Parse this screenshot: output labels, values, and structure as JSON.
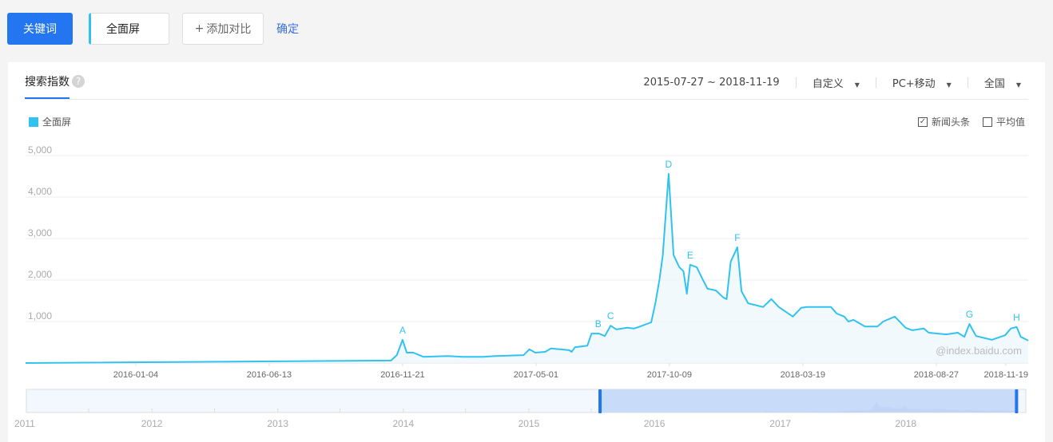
{
  "toolbar": {
    "keyword_button": "关键词",
    "keyword_value": "全面屏",
    "add_compare": "添加对比",
    "plus_icon": "+",
    "confirm": "确定"
  },
  "panel": {
    "tab": "搜索指数",
    "help_icon": "?",
    "date_range": "2015-07-27 ~ 2018-11-19",
    "period": "自定义",
    "device": "PC+移动",
    "region": "全国",
    "legend": "全面屏",
    "news_checkbox": {
      "label": "新闻头条",
      "checked": true
    },
    "avg_checkbox": {
      "label": "平均值",
      "checked": false
    },
    "watermark": "@index.baidu.com"
  },
  "colors": {
    "series": "#32c2ef",
    "accent": "#2375f0",
    "fill": "#eef8fd"
  },
  "chart_data": {
    "type": "area",
    "ylim": [
      0,
      5000
    ],
    "yticks": [
      "5,000",
      "4,000",
      "3,000",
      "2,000",
      "1,000"
    ],
    "ytick_values": [
      5000,
      4000,
      3000,
      2000,
      1000
    ],
    "xlim": [
      "2015-08-24",
      "2018-12-16"
    ],
    "xticks": [
      "2016-01-04",
      "2016-06-13",
      "2016-11-21",
      "2017-05-01",
      "2017-10-09",
      "2018-03-19",
      "2018-08-27",
      "2018-11-19"
    ],
    "grid": true,
    "legend_placement": "top-left",
    "series": [
      {
        "name": "全面屏",
        "points": [
          [
            "2015-08-24",
            0
          ],
          [
            "2016-11-07",
            60
          ],
          [
            "2016-11-14",
            190
          ],
          [
            "2016-11-21",
            560
          ],
          [
            "2016-11-26",
            250
          ],
          [
            "2016-12-04",
            250
          ],
          [
            "2016-12-16",
            150
          ],
          [
            "2017-01-14",
            170
          ],
          [
            "2017-02-02",
            150
          ],
          [
            "2017-02-26",
            150
          ],
          [
            "2017-03-13",
            170
          ],
          [
            "2017-04-16",
            190
          ],
          [
            "2017-04-23",
            330
          ],
          [
            "2017-04-30",
            250
          ],
          [
            "2017-05-12",
            270
          ],
          [
            "2017-05-19",
            350
          ],
          [
            "2017-06-10",
            310
          ],
          [
            "2017-06-13",
            270
          ],
          [
            "2017-06-17",
            380
          ],
          [
            "2017-07-02",
            420
          ],
          [
            "2017-07-07",
            710
          ],
          [
            "2017-07-16",
            710
          ],
          [
            "2017-07-23",
            650
          ],
          [
            "2017-07-30",
            900
          ],
          [
            "2017-08-06",
            810
          ],
          [
            "2017-08-19",
            850
          ],
          [
            "2017-08-27",
            830
          ],
          [
            "2017-09-02",
            870
          ],
          [
            "2017-09-17",
            980
          ],
          [
            "2017-09-22",
            1440
          ],
          [
            "2017-09-27",
            2020
          ],
          [
            "2017-10-01",
            2600
          ],
          [
            "2017-10-08",
            4560
          ],
          [
            "2017-10-14",
            2600
          ],
          [
            "2017-10-21",
            2310
          ],
          [
            "2017-10-26",
            2210
          ],
          [
            "2017-10-30",
            1670
          ],
          [
            "2017-11-03",
            2370
          ],
          [
            "2017-11-11",
            2310
          ],
          [
            "2017-11-18",
            2020
          ],
          [
            "2017-11-24",
            1790
          ],
          [
            "2017-12-04",
            1750
          ],
          [
            "2017-12-13",
            1580
          ],
          [
            "2017-12-17",
            1540
          ],
          [
            "2017-12-22",
            2440
          ],
          [
            "2017-12-30",
            2790
          ],
          [
            "2018-01-04",
            1730
          ],
          [
            "2018-01-12",
            1440
          ],
          [
            "2018-01-30",
            1350
          ],
          [
            "2018-02-09",
            1540
          ],
          [
            "2018-02-18",
            1350
          ],
          [
            "2018-03-07",
            1120
          ],
          [
            "2018-03-17",
            1330
          ],
          [
            "2018-03-24",
            1350
          ],
          [
            "2018-04-22",
            1350
          ],
          [
            "2018-04-29",
            1190
          ],
          [
            "2018-05-08",
            1120
          ],
          [
            "2018-05-13",
            1000
          ],
          [
            "2018-05-19",
            1040
          ],
          [
            "2018-06-02",
            880
          ],
          [
            "2018-06-17",
            880
          ],
          [
            "2018-06-24",
            1000
          ],
          [
            "2018-07-08",
            1120
          ],
          [
            "2018-07-21",
            850
          ],
          [
            "2018-07-29",
            790
          ],
          [
            "2018-08-12",
            830
          ],
          [
            "2018-08-18",
            730
          ],
          [
            "2018-09-08",
            690
          ],
          [
            "2018-09-22",
            730
          ],
          [
            "2018-09-30",
            630
          ],
          [
            "2018-10-06",
            940
          ],
          [
            "2018-10-14",
            650
          ],
          [
            "2018-11-02",
            560
          ],
          [
            "2018-11-18",
            670
          ],
          [
            "2018-11-25",
            830
          ],
          [
            "2018-12-02",
            870
          ],
          [
            "2018-12-07",
            630
          ],
          [
            "2018-12-16",
            540
          ]
        ]
      }
    ],
    "annotations": [
      [
        "A",
        "2016-11-21",
        560
      ],
      [
        "B",
        "2017-07-15",
        710
      ],
      [
        "C",
        "2017-07-30",
        900
      ],
      [
        "D",
        "2017-10-08",
        4560
      ],
      [
        "E",
        "2017-11-03",
        2370
      ],
      [
        "F",
        "2017-12-30",
        2790
      ],
      [
        "G",
        "2018-10-06",
        940
      ],
      [
        "H",
        "2018-12-02",
        870
      ]
    ],
    "navigator": {
      "years": [
        "2011",
        "2012",
        "2013",
        "2014",
        "2015",
        "2016",
        "2017",
        "2018"
      ],
      "selection": [
        "2015-07-27",
        "2018-11-19"
      ]
    }
  }
}
